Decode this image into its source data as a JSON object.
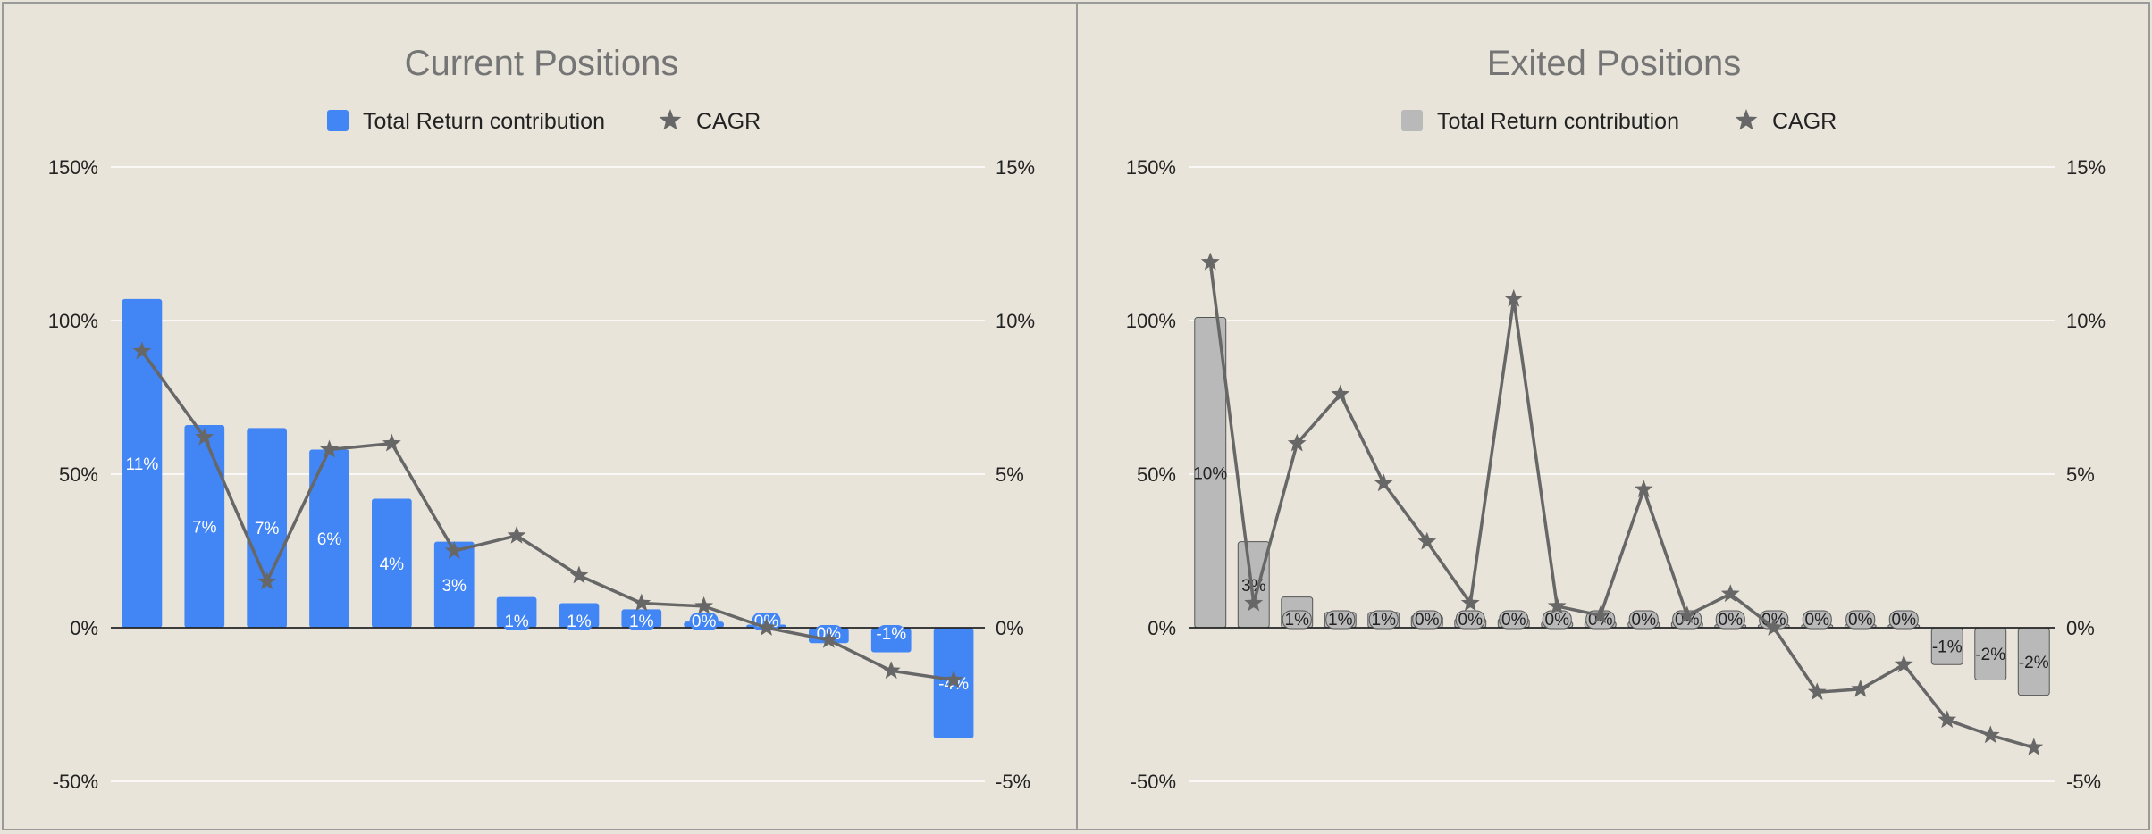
{
  "chart_data": [
    {
      "type": "bar",
      "title": "Current Positions",
      "legend": [
        "Total Return contribution",
        "CAGR"
      ],
      "legend_position": "top",
      "grid": true,
      "colors": {
        "bar": "#4285f4",
        "bar_label": "#ffffff",
        "line": "#676767"
      },
      "y_left": {
        "ticks": [
          "150%",
          "100%",
          "50%",
          "0%",
          "-50%"
        ],
        "range": [
          -50,
          150
        ]
      },
      "y_right": {
        "ticks": [
          "15%",
          "10%",
          "5%",
          "0%",
          "-5%"
        ],
        "range": [
          -5,
          15
        ]
      },
      "series": [
        {
          "name": "Total Return contribution",
          "axis": "left",
          "values": [
            107,
            66,
            65,
            58,
            42,
            28,
            10,
            8,
            6,
            2,
            1,
            -5,
            -8,
            -36
          ],
          "labels": [
            "11%",
            "7%",
            "7%",
            "6%",
            "4%",
            "3%",
            "1%",
            "1%",
            "1%",
            "0%",
            "0%",
            "0%",
            "-1%",
            "-4%"
          ]
        },
        {
          "name": "CAGR",
          "axis": "right",
          "values": [
            9.0,
            6.2,
            1.5,
            5.8,
            6.0,
            2.5,
            3.0,
            1.7,
            0.8,
            0.7,
            0.0,
            -0.4,
            -1.4,
            -1.7
          ]
        }
      ]
    },
    {
      "type": "bar",
      "title": "Exited Positions",
      "legend": [
        "Total Return contribution",
        "CAGR"
      ],
      "legend_position": "top",
      "grid": true,
      "colors": {
        "bar": "#b9b9b9",
        "bar_label": "#222222",
        "line": "#676767"
      },
      "y_left": {
        "ticks": [
          "150%",
          "100%",
          "50%",
          "0%",
          "-50%"
        ],
        "range": [
          -50,
          150
        ]
      },
      "y_right": {
        "ticks": [
          "15%",
          "10%",
          "5%",
          "0%",
          "-5%"
        ],
        "range": [
          -5,
          15
        ]
      },
      "series": [
        {
          "name": "Total Return contribution",
          "axis": "left",
          "values": [
            101,
            28,
            10,
            5,
            5,
            4,
            3,
            3,
            2,
            2,
            2,
            2,
            1,
            1,
            1,
            1,
            1,
            -12,
            -17,
            -22
          ],
          "labels": [
            "10%",
            "3%",
            "1%",
            "1%",
            "1%",
            "0%",
            "0%",
            "0%",
            "0%",
            "0%",
            "0%",
            "0%",
            "0%",
            "0%",
            "0%",
            "0%",
            "0%",
            "-1%",
            "-2%",
            "-2%"
          ]
        },
        {
          "name": "CAGR",
          "axis": "right",
          "values": [
            11.9,
            0.8,
            6.0,
            7.6,
            4.7,
            2.8,
            0.8,
            10.7,
            0.7,
            0.4,
            4.5,
            0.4,
            1.1,
            0.0,
            -2.1,
            -2.0,
            -1.2,
            -3.0,
            -3.5,
            -3.9
          ]
        }
      ]
    }
  ]
}
